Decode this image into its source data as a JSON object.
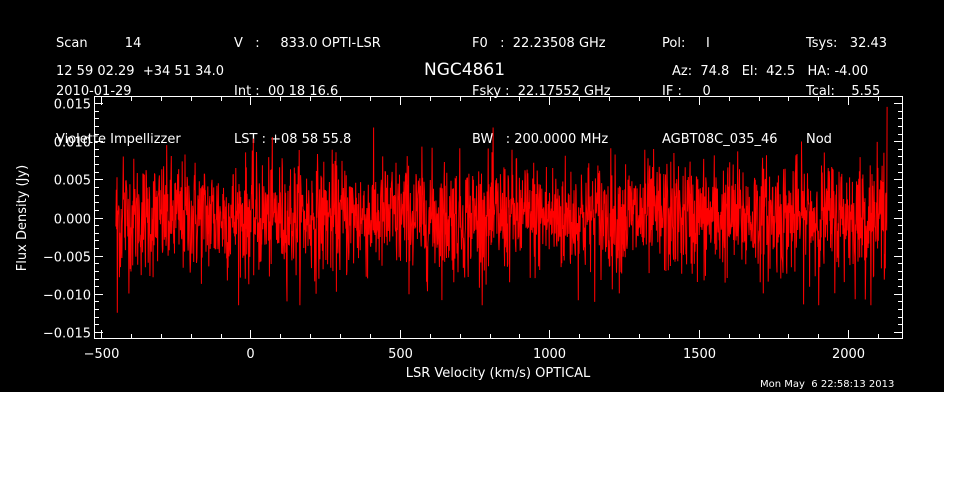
{
  "header": {
    "col1": [
      "Scan         14",
      "2010-01-29",
      "Violette Impellizzer"
    ],
    "col2": [
      "V   :     833.0 OPTI-LSR",
      "Int :  00 18 16.6",
      "LST : +08 58 55.8"
    ],
    "col3": [
      "F0   :  22.23508 GHz",
      "Fsky :  22.17552 GHz",
      "BW   : 200.0000 MHz"
    ],
    "col4": [
      "Pol:     I",
      "IF :     0",
      "AGBT08C_035_46"
    ],
    "col5": [
      "Tsys:   32.43",
      "Tcal:    5.55",
      "Nod"
    ],
    "coords": "12 59 02.29  +34 51 34.0",
    "source": "NGC4861",
    "azel": "Az:  74.8   El:  42.5   HA: -4.00",
    "timestamp": "Mon May  6 22:58:13 2013"
  },
  "colors": {
    "background": "#000000",
    "axes": "#ffffff",
    "series": "#ff0000",
    "page": "#ffffff"
  },
  "chart_data": {
    "type": "line",
    "title": "NGC4861",
    "xlabel": "LSR Velocity (km/s) OPTICAL",
    "ylabel": "Flux Density (Jy)",
    "xlim": [
      -520,
      2180
    ],
    "ylim": [
      -0.0158,
      0.0158
    ],
    "xticks": [
      -500,
      0,
      500,
      1000,
      1500,
      2000
    ],
    "xtick_labels": [
      "−500",
      "0",
      "500",
      "1000",
      "1500",
      "2000"
    ],
    "yticks": [
      -0.015,
      -0.01,
      -0.005,
      0.0,
      0.005,
      0.01,
      0.015
    ],
    "ytick_labels": [
      "−0.015",
      "−0.010",
      "−0.005",
      "0.000",
      "0.005",
      "0.010",
      "0.015"
    ],
    "grid": false,
    "series": [
      {
        "x_range": [
          -450,
          2130
        ],
        "noise_rms": 0.0038,
        "features": [
          {
            "x": -445,
            "y": -0.0125
          },
          {
            "x": -435,
            "y": -0.0065
          },
          {
            "x": -425,
            "y": 0.008
          },
          {
            "x": 2120,
            "y": 0.0085
          },
          {
            "x": 2130,
            "y": 0.0145
          }
        ]
      }
    ]
  }
}
